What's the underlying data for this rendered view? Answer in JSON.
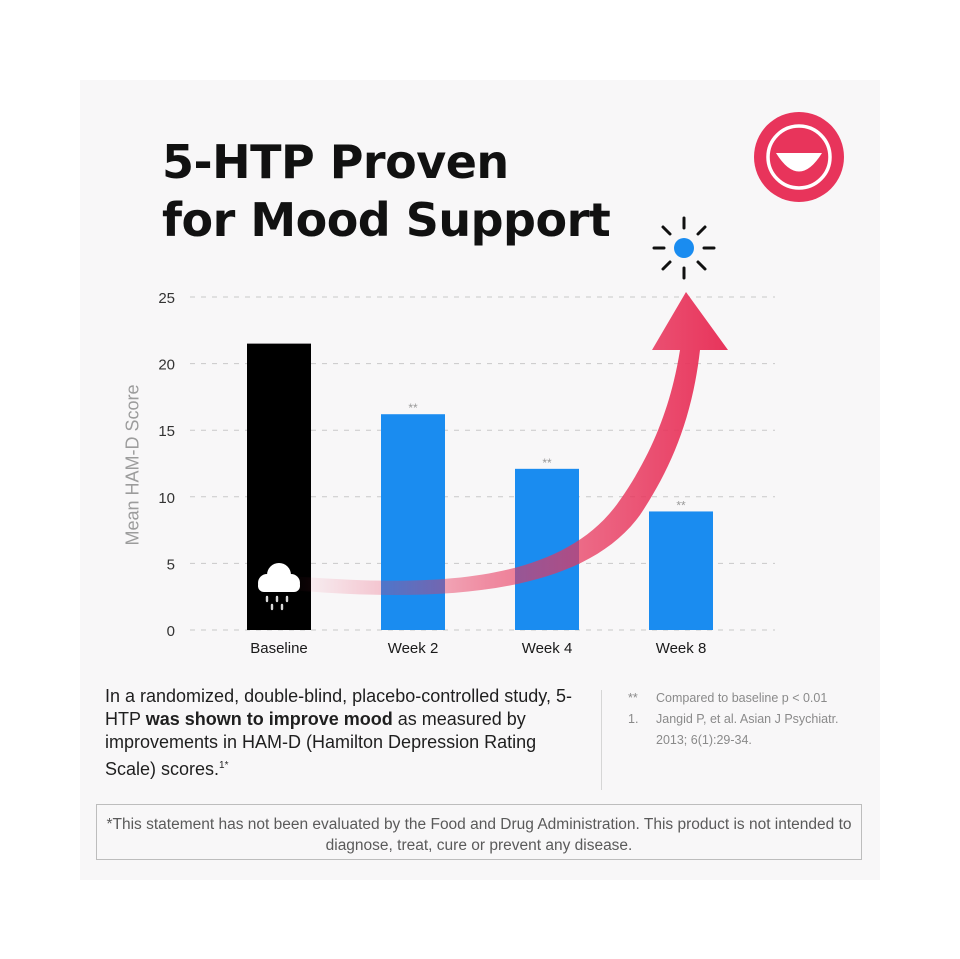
{
  "title": {
    "line1": "5-HTP Proven",
    "line2": "for Mood Support"
  },
  "colors": {
    "accent_red": "#e8345b",
    "bar_blue": "#1a8cf0",
    "baseline_bar": "#000000",
    "sun_blue": "#1a8cf0"
  },
  "icons": {
    "smiley": "smiley-face-icon",
    "cloud": "rain-cloud-icon",
    "sun": "sun-icon",
    "arrow": "upward-arrow-icon"
  },
  "chart_data": {
    "type": "bar",
    "title": "",
    "xlabel": "",
    "ylabel": "Mean HAM-D Score",
    "ylim": [
      0,
      25
    ],
    "yticks": [
      "0",
      "5",
      "10",
      "15",
      "20",
      "25"
    ],
    "grid": true,
    "categories": [
      "Baseline",
      "Week 2",
      "Week 4",
      "Week 8"
    ],
    "values": [
      21.5,
      16.2,
      12.1,
      8.9
    ],
    "significance": [
      "",
      "**",
      "**",
      "**"
    ]
  },
  "body": {
    "part1": "In a randomized, double-blind, placebo-controlled study, 5-HTP ",
    "bold": "was shown to improve mood",
    "part2": " as measured by improvements in HAM-D (Hamilton Depression Rating Scale) scores.",
    "sup": "1*"
  },
  "notes": [
    {
      "mark": "**",
      "text": "Compared to baseline p < 0.01"
    },
    {
      "mark": "1.",
      "text": "Jangid P, et al. Asian J Psychiatr. 2013; 6(1):29-34."
    }
  ],
  "disclaimer": "*This statement has not been evaluated by the Food and Drug Administration. This product is not intended to diagnose, treat, cure or prevent any disease."
}
